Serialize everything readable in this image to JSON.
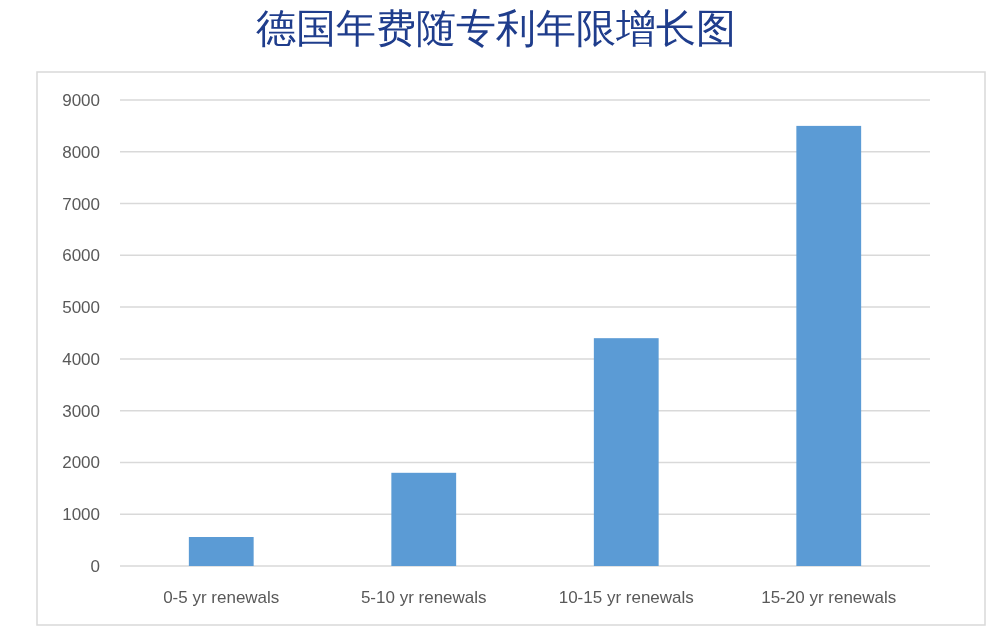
{
  "chart_data": {
    "type": "bar",
    "title": "德国年费随专利年限增长图",
    "categories": [
      "0-5 yr renewals",
      "5-10 yr renewals",
      "10-15 yr renewals",
      "15-20 yr renewals"
    ],
    "values": [
      560,
      1800,
      4400,
      8500
    ],
    "color": "#5b9bd5",
    "ylim": [
      0,
      9000
    ],
    "yticks": [
      0,
      1000,
      2000,
      3000,
      4000,
      5000,
      6000,
      7000,
      8000,
      9000
    ],
    "grid": "y"
  }
}
